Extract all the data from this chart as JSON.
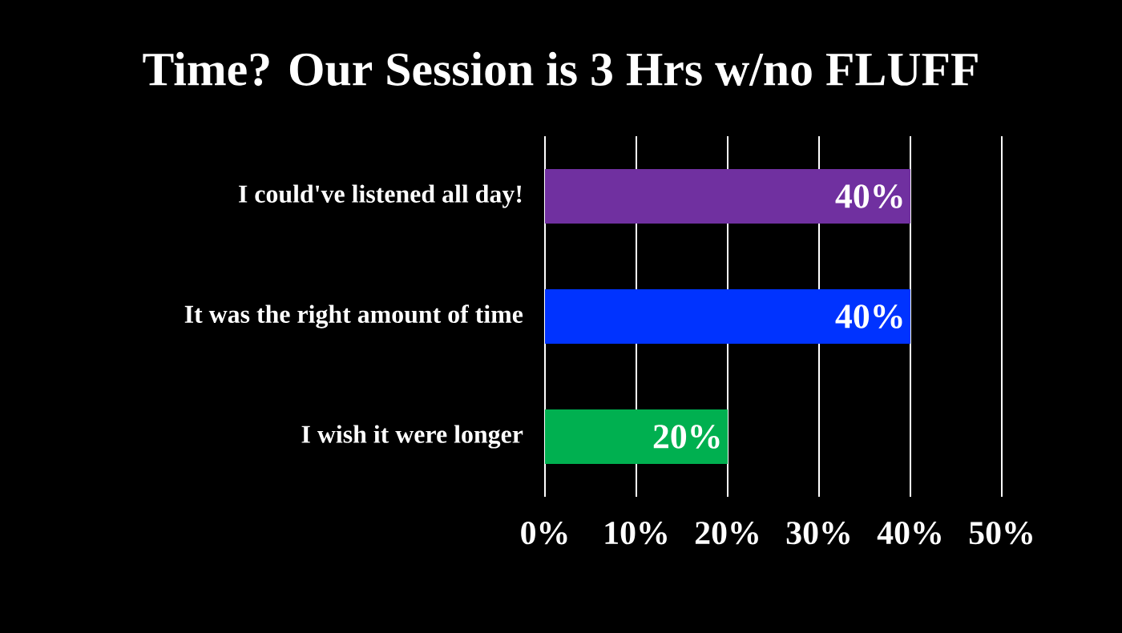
{
  "chart_data": {
    "type": "bar",
    "orientation": "horizontal",
    "title": "Time?  Our Session is 3 Hrs w/no FLUFF",
    "categories": [
      "I could've listened all day!",
      "It was the right amount of time",
      "I wish it were longer"
    ],
    "values": [
      40,
      40,
      20
    ],
    "colors": [
      "#7030a0",
      "#0033ff",
      "#00b050"
    ],
    "value_labels": [
      "40%",
      "40%",
      "20%"
    ],
    "xlim": [
      0,
      50
    ],
    "xticks": [
      {
        "value": 0,
        "label": "0%"
      },
      {
        "value": 10,
        "label": "10%"
      },
      {
        "value": 20,
        "label": "20%"
      },
      {
        "value": 30,
        "label": "30%"
      },
      {
        "value": 40,
        "label": "40%"
      },
      {
        "value": 50,
        "label": "50%"
      }
    ],
    "grid": "x"
  }
}
